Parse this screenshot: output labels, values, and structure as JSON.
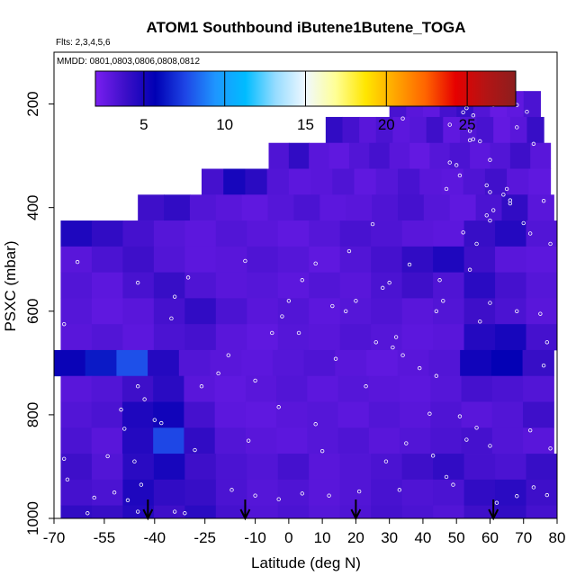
{
  "chart_data": {
    "type": "heatmap",
    "title": "ATOM1 Southbound iButene1Butene_TOGA",
    "subtitle_flights": "Flts: 2,3,4,5,6",
    "subtitle_dates": "MMDD: 0801,0803,0806,0808,0812",
    "xlabel": "Latitude (deg N)",
    "ylabel": "PSXC (mbar)",
    "xlim": [
      -70,
      80
    ],
    "ylim": [
      1000,
      100
    ],
    "x_ticks": [
      -70,
      -55,
      -40,
      -25,
      -10,
      0,
      10,
      20,
      30,
      40,
      50,
      60,
      70,
      80
    ],
    "y_ticks": [
      200,
      400,
      600,
      800,
      1000
    ],
    "colorbar": {
      "range": [
        2,
        28
      ],
      "ticks": [
        5,
        10,
        15,
        20,
        25
      ],
      "colors": [
        "#7a1ff0",
        "#3c0fc8",
        "#0000b4",
        "#1e46e6",
        "#1e96ff",
        "#00bcff",
        "#96dcff",
        "#f0f8ff",
        "#ffff96",
        "#ffe600",
        "#ffa500",
        "#ff6400",
        "#e60000",
        "#b41414",
        "#8c1e1e"
      ]
    },
    "band_height_mbar": 50,
    "bands": [
      {
        "p": 200,
        "x": [
          30,
          75
        ],
        "v": [
          3.5,
          3.0,
          2.8,
          3.6,
          4.0,
          3.2,
          2.6,
          2.8,
          3.4
        ]
      },
      {
        "p": 250,
        "x": [
          11,
          76
        ],
        "v": [
          4.2,
          3.6,
          3.0,
          3.4,
          2.9,
          3.1,
          3.8,
          2.8,
          3.2,
          3.5,
          2.7,
          3.0,
          4.0
        ]
      },
      {
        "p": 300,
        "x": [
          -6,
          78
        ],
        "v": [
          3.3,
          4.2,
          3.0,
          2.8,
          3.2,
          3.6,
          3.0,
          2.7,
          3.1,
          3.4,
          2.9,
          3.2,
          3.8,
          3.0
        ]
      },
      {
        "p": 350,
        "x": [
          -26,
          78
        ],
        "v": [
          3.6,
          5.0,
          4.4,
          3.2,
          2.9,
          3.0,
          3.3,
          2.8,
          3.1,
          3.5,
          3.0,
          2.9,
          3.3,
          3.7,
          3.0,
          2.8
        ]
      },
      {
        "p": 400,
        "x": [
          -45,
          79
        ],
        "v": [
          3.8,
          4.2,
          3.2,
          3.0,
          2.8,
          3.1,
          3.4,
          2.9,
          3.0,
          3.3,
          3.6,
          3.1,
          2.8,
          3.4,
          4.2,
          3.0
        ]
      },
      {
        "p": 450,
        "x": [
          -68,
          80
        ],
        "v": [
          4.8,
          4.2,
          3.6,
          3.1,
          2.9,
          3.2,
          3.0,
          2.8,
          3.1,
          3.5,
          3.3,
          3.0,
          2.9,
          4.0,
          4.6,
          3.2
        ]
      },
      {
        "p": 500,
        "x": [
          -68,
          80
        ],
        "v": [
          3.0,
          3.4,
          3.8,
          3.2,
          2.9,
          3.0,
          3.3,
          3.1,
          2.8,
          3.2,
          3.6,
          4.2,
          4.8,
          3.8,
          3.0,
          2.9
        ]
      },
      {
        "p": 550,
        "x": [
          -68,
          80
        ],
        "v": [
          3.2,
          2.9,
          3.5,
          4.0,
          3.3,
          3.0,
          3.1,
          2.9,
          3.2,
          3.0,
          3.4,
          3.8,
          3.3,
          4.4,
          3.6,
          3.1
        ]
      },
      {
        "p": 600,
        "x": [
          -68,
          80
        ],
        "v": [
          3.1,
          2.8,
          3.0,
          3.6,
          4.2,
          3.4,
          3.0,
          3.2,
          2.9,
          3.1,
          3.3,
          3.0,
          3.2,
          3.8,
          3.4,
          3.0
        ]
      },
      {
        "p": 650,
        "x": [
          -68,
          80
        ],
        "v": [
          3.0,
          3.2,
          2.9,
          3.4,
          3.6,
          3.0,
          2.8,
          3.1,
          3.0,
          3.3,
          3.1,
          2.9,
          3.0,
          4.6,
          5.0,
          3.6
        ]
      },
      {
        "p": 700,
        "x": [
          -70,
          79
        ],
        "v": [
          5.4,
          6.4,
          7.8,
          4.6,
          3.2,
          3.0,
          2.9,
          3.1,
          3.3,
          3.0,
          2.8,
          3.0,
          3.2,
          5.2,
          5.6,
          4.0
        ]
      },
      {
        "p": 750,
        "x": [
          -68,
          79
        ],
        "v": [
          3.0,
          3.2,
          3.8,
          4.4,
          3.0,
          2.8,
          3.0,
          3.2,
          2.9,
          3.1,
          3.0,
          2.9,
          3.1,
          3.6,
          3.4,
          3.2
        ]
      },
      {
        "p": 800,
        "x": [
          -68,
          79
        ],
        "v": [
          3.2,
          3.4,
          4.8,
          5.2,
          3.6,
          2.9,
          2.8,
          3.0,
          3.1,
          2.9,
          3.2,
          3.0,
          3.3,
          3.0,
          3.2,
          3.8
        ]
      },
      {
        "p": 850,
        "x": [
          -68,
          79
        ],
        "v": [
          3.4,
          3.0,
          4.6,
          7.6,
          4.2,
          3.2,
          3.0,
          2.9,
          3.1,
          3.3,
          3.0,
          3.2,
          3.4,
          3.6,
          3.2,
          3.0
        ]
      },
      {
        "p": 900,
        "x": [
          -68,
          80
        ],
        "v": [
          3.8,
          3.2,
          4.4,
          5.0,
          3.8,
          3.4,
          3.2,
          3.6,
          3.0,
          3.2,
          3.4,
          3.8,
          4.2,
          3.6,
          3.4,
          4.0
        ]
      },
      {
        "p": 950,
        "x": [
          -68,
          80
        ],
        "v": [
          3.6,
          3.4,
          4.8,
          4.2,
          4.0,
          3.4,
          3.1,
          3.3,
          3.0,
          3.2,
          3.5,
          3.3,
          3.4,
          4.2,
          4.4,
          3.8
        ]
      },
      {
        "p": 1000,
        "x": [
          -68,
          80
        ],
        "v": [
          4.2,
          4.0,
          4.6,
          3.8,
          4.4,
          3.6,
          3.2,
          3.4,
          3.1,
          3.3,
          3.6,
          3.4,
          3.2,
          3.8,
          4.2,
          3.6
        ]
      }
    ],
    "arrows_lat": [
      -42,
      -13,
      20,
      61
    ],
    "sample_points": [
      [
        61,
        202
      ],
      [
        68,
        202
      ],
      [
        53,
        208
      ],
      [
        52,
        216
      ],
      [
        71,
        215
      ],
      [
        55,
        222
      ],
      [
        34,
        228
      ],
      [
        54,
        252
      ],
      [
        68,
        245
      ],
      [
        48,
        240
      ],
      [
        55,
        268
      ],
      [
        54,
        270
      ],
      [
        57,
        272
      ],
      [
        73,
        277
      ],
      [
        60,
        308
      ],
      [
        48,
        313
      ],
      [
        50,
        318
      ],
      [
        51,
        338
      ],
      [
        47,
        364
      ],
      [
        65,
        364
      ],
      [
        59,
        357
      ],
      [
        60,
        370
      ],
      [
        64,
        375
      ],
      [
        66,
        386
      ],
      [
        76,
        387
      ],
      [
        66,
        392
      ],
      [
        61,
        405
      ],
      [
        59,
        415
      ],
      [
        60,
        425
      ],
      [
        70,
        430
      ],
      [
        52,
        448
      ],
      [
        72,
        450
      ],
      [
        56,
        470
      ],
      [
        78,
        470
      ],
      [
        45,
        540
      ],
      [
        54,
        520
      ],
      [
        46,
        580
      ],
      [
        60,
        584
      ],
      [
        68,
        600
      ],
      [
        75,
        605
      ],
      [
        57,
        620
      ],
      [
        77,
        660
      ],
      [
        76,
        705
      ],
      [
        39,
        710
      ],
      [
        44,
        725
      ],
      [
        42,
        798
      ],
      [
        51,
        803
      ],
      [
        56,
        825
      ],
      [
        72,
        830
      ],
      [
        78,
        865
      ],
      [
        29,
        890
      ],
      [
        10,
        870
      ],
      [
        -3,
        785
      ],
      [
        8,
        818
      ],
      [
        -12,
        850
      ],
      [
        -26,
        745
      ],
      [
        -40,
        810
      ],
      [
        -28,
        868
      ],
      [
        -17,
        945
      ],
      [
        -45,
        545
      ],
      [
        -30,
        535
      ],
      [
        -63,
        505
      ],
      [
        -35,
        614
      ],
      [
        -45,
        745
      ],
      [
        -43,
        770
      ],
      [
        -38,
        816
      ],
      [
        -52,
        950
      ],
      [
        -48,
        965
      ],
      [
        -45,
        987
      ],
      [
        -34,
        987
      ],
      [
        -31,
        990
      ],
      [
        -60,
        990
      ],
      [
        -58,
        960
      ],
      [
        -44,
        935
      ],
      [
        -66,
        925
      ],
      [
        -67,
        885
      ],
      [
        -54,
        880
      ],
      [
        -49,
        827
      ],
      [
        -67,
        625
      ],
      [
        -34,
        572
      ],
      [
        -13,
        503
      ],
      [
        0,
        580
      ],
      [
        3,
        642
      ],
      [
        26,
        660
      ],
      [
        32,
        650
      ],
      [
        44,
        600
      ],
      [
        34,
        685
      ],
      [
        23,
        745
      ],
      [
        31,
        670
      ],
      [
        14,
        692
      ],
      [
        -10,
        734
      ],
      [
        4,
        540
      ],
      [
        25,
        432
      ],
      [
        18,
        484
      ],
      [
        8,
        508
      ],
      [
        17,
        600
      ],
      [
        -18,
        685
      ],
      [
        -21,
        720
      ],
      [
        -50,
        790
      ],
      [
        -46,
        890
      ],
      [
        -2,
        610
      ],
      [
        -5,
        642
      ],
      [
        35,
        855
      ],
      [
        53,
        848
      ],
      [
        60,
        860
      ],
      [
        43,
        879
      ],
      [
        49,
        935
      ],
      [
        62,
        970
      ],
      [
        68,
        957
      ],
      [
        73,
        940
      ],
      [
        77,
        955
      ],
      [
        -10,
        956
      ],
      [
        -3,
        963
      ],
      [
        4,
        952
      ],
      [
        12,
        956
      ],
      [
        21,
        948
      ],
      [
        33,
        945
      ],
      [
        47,
        920
      ],
      [
        28,
        555
      ],
      [
        20,
        580
      ],
      [
        36,
        510
      ],
      [
        30,
        545
      ],
      [
        13,
        590
      ]
    ]
  }
}
